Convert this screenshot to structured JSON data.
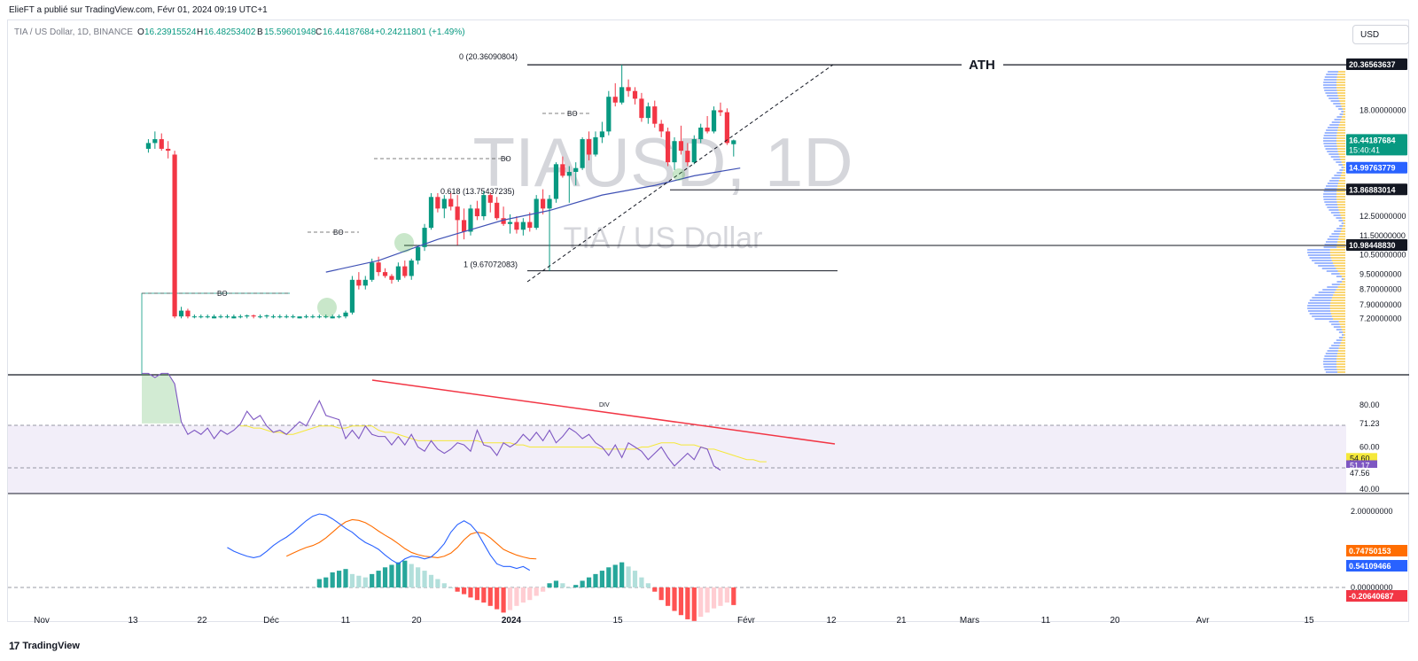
{
  "header": {
    "publisher": "ElieFT a publié sur TradingView.com, Févr 01, 2024 09:19 UTC+1"
  },
  "legend": {
    "symbol": "TIA / US Dollar, 1D, BINANCE",
    "open_label": "O",
    "open": "16.23915524",
    "high_label": "H",
    "high": "16.48253402",
    "low_label": "B",
    "low": "15.59601948",
    "close_label": "C",
    "close": "16.44187684",
    "change": "+0.24211801 (+1.49%)",
    "up_color": "#089981",
    "down_color": "#f23645"
  },
  "currency": "USD",
  "watermark": {
    "ticker": "TIAUSD, 1D",
    "name": "TIA / US Dollar"
  },
  "footer": {
    "brand": "TradingView",
    "mark": "17"
  },
  "chart_data": {
    "type": "candlestick",
    "price_axis": {
      "labels": [
        "18.00000000",
        "12.50000000",
        "11.50000000",
        "10.50000000",
        "9.50000000",
        "8.70000000",
        "7.90000000",
        "7.20000000"
      ],
      "values": [
        18.0,
        12.5,
        11.5,
        10.5,
        9.5,
        8.7,
        7.9,
        7.2
      ],
      "tags": [
        {
          "text": "20.36563637",
          "value": 20.36563637,
          "bg": "#131722",
          "fg": "#ffffff"
        },
        {
          "text": "16.44187684",
          "value": 16.44187684,
          "bg": "#089981",
          "fg": "#ffffff",
          "sub": "15:40:41"
        },
        {
          "text": "14.99763779",
          "value": 14.99763779,
          "bg": "#2962ff",
          "fg": "#ffffff"
        },
        {
          "text": "13.86883014",
          "value": 13.86883014,
          "bg": "#131722",
          "fg": "#ffffff"
        },
        {
          "text": "10.98448830",
          "value": 10.9844883,
          "bg": "#131722",
          "fg": "#ffffff"
        }
      ]
    },
    "time_axis": [
      "Nov",
      "13",
      "22",
      "Déc",
      "11",
      "20",
      "2024",
      "15",
      "Févr",
      "12",
      "21",
      "Mars",
      "11",
      "20",
      "Avr",
      "15"
    ],
    "candles": [
      [
        16,
        16,
        16,
        16
      ],
      [
        16,
        16.5,
        15.8,
        16.3
      ],
      [
        16.3,
        16.9,
        16,
        16.5
      ],
      [
        16.5,
        16.8,
        15.9,
        16.0
      ],
      [
        16.0,
        16.4,
        15.5,
        15.9
      ],
      [
        15.7,
        15.9,
        7.2,
        7.3
      ],
      [
        7.3,
        7.8,
        7.2,
        7.6
      ],
      [
        7.6,
        7.7,
        7.2,
        7.3
      ],
      [
        7.3,
        7.4,
        7.2,
        7.3
      ],
      [
        7.3,
        7.4,
        7.2,
        7.3
      ],
      [
        7.3,
        7.4,
        7.2,
        7.3
      ],
      [
        7.2,
        7.4,
        7.2,
        7.3
      ],
      [
        7.3,
        7.4,
        7.2,
        7.3
      ],
      [
        7.3,
        7.4,
        7.2,
        7.3
      ],
      [
        7.2,
        7.4,
        7.2,
        7.3
      ],
      [
        7.3,
        7.4,
        7.2,
        7.3
      ],
      [
        7.3,
        7.4,
        7.2,
        7.35
      ],
      [
        7.35,
        7.4,
        7.2,
        7.3
      ],
      [
        7.3,
        7.4,
        7.2,
        7.3
      ],
      [
        7.3,
        7.4,
        7.2,
        7.35
      ],
      [
        7.3,
        7.4,
        7.2,
        7.3
      ],
      [
        7.3,
        7.4,
        7.2,
        7.3
      ],
      [
        7.3,
        7.4,
        7.2,
        7.3
      ],
      [
        7.3,
        7.4,
        7.2,
        7.3
      ],
      [
        7.2,
        7.3,
        7.2,
        7.3
      ],
      [
        7.3,
        7.4,
        7.2,
        7.3
      ],
      [
        7.3,
        7.4,
        7.2,
        7.3
      ],
      [
        7.3,
        7.4,
        7.2,
        7.3
      ],
      [
        7.3,
        7.4,
        7.2,
        7.3
      ],
      [
        7.2,
        7.4,
        7.2,
        7.3
      ],
      [
        7.3,
        7.4,
        7.2,
        7.3
      ],
      [
        7.3,
        7.6,
        7.2,
        7.5
      ],
      [
        7.5,
        9.4,
        7.4,
        9.2
      ],
      [
        9.2,
        9.6,
        8.7,
        8.9
      ],
      [
        8.9,
        9.4,
        8.7,
        9.2
      ],
      [
        9.2,
        10.3,
        9.1,
        10.1
      ],
      [
        10.1,
        10.4,
        9.4,
        9.6
      ],
      [
        9.6,
        9.8,
        9.3,
        9.4
      ],
      [
        9.4,
        9.5,
        9.0,
        9.2
      ],
      [
        9.2,
        10.1,
        9.1,
        9.9
      ],
      [
        9.9,
        10.2,
        9.3,
        9.4
      ],
      [
        9.4,
        10.3,
        9.2,
        10.2
      ],
      [
        10.2,
        11.0,
        10.0,
        10.9
      ],
      [
        10.9,
        12.1,
        10.7,
        11.9
      ],
      [
        11.9,
        13.7,
        11.8,
        13.5
      ],
      [
        13.5,
        13.7,
        12.7,
        12.9
      ],
      [
        12.9,
        13.6,
        12.4,
        13.4
      ],
      [
        13.4,
        13.7,
        12.8,
        13.0
      ],
      [
        13.0,
        13.6,
        11.0,
        12.3
      ],
      [
        12.3,
        12.9,
        11.3,
        11.7
      ],
      [
        11.7,
        13.1,
        11.5,
        12.9
      ],
      [
        12.9,
        13.3,
        12.3,
        12.5
      ],
      [
        12.5,
        13.8,
        12.3,
        13.6
      ],
      [
        13.6,
        13.7,
        12.7,
        13.2
      ],
      [
        13.2,
        13.5,
        12.3,
        12.4
      ],
      [
        12.4,
        13.0,
        12.0,
        12.1
      ],
      [
        12.1,
        12.6,
        11.6,
        12.2
      ],
      [
        12.2,
        12.5,
        11.6,
        11.8
      ],
      [
        11.8,
        12.4,
        11.5,
        12.2
      ],
      [
        12.2,
        12.7,
        11.7,
        11.9
      ],
      [
        11.9,
        13.6,
        11.8,
        13.4
      ],
      [
        13.4,
        13.9,
        12.6,
        12.9
      ],
      [
        12.9,
        13.6,
        9.67,
        13.4
      ],
      [
        13.4,
        15.3,
        13.2,
        15.2
      ],
      [
        15.2,
        15.6,
        14.5,
        14.6
      ],
      [
        14.6,
        15.1,
        13.2,
        14.8
      ],
      [
        14.8,
        15.3,
        14.1,
        15.0
      ],
      [
        15.0,
        16.6,
        14.9,
        16.5
      ],
      [
        16.5,
        16.9,
        15.4,
        15.7
      ],
      [
        15.7,
        16.9,
        15.6,
        16.6
      ],
      [
        16.6,
        17.4,
        16.3,
        16.9
      ],
      [
        16.9,
        19.0,
        16.7,
        18.7
      ],
      [
        18.7,
        19.4,
        18.2,
        18.4
      ],
      [
        18.4,
        20.36,
        18.3,
        19.2
      ],
      [
        19.2,
        19.6,
        18.7,
        19.0
      ],
      [
        19.0,
        19.2,
        18.3,
        18.6
      ],
      [
        18.6,
        18.9,
        17.4,
        17.6
      ],
      [
        17.6,
        18.4,
        17.3,
        18.2
      ],
      [
        18.2,
        18.5,
        17.1,
        17.3
      ],
      [
        17.3,
        17.5,
        16.6,
        16.9
      ],
      [
        16.9,
        17.1,
        15.1,
        15.3
      ],
      [
        15.3,
        16.6,
        14.9,
        16.4
      ],
      [
        16.4,
        17.2,
        15.7,
        15.9
      ],
      [
        15.9,
        16.3,
        15.1,
        15.3
      ],
      [
        15.3,
        16.7,
        15.2,
        16.5
      ],
      [
        16.5,
        17.3,
        16.3,
        17.1
      ],
      [
        17.1,
        17.7,
        16.8,
        16.9
      ],
      [
        16.9,
        18.2,
        16.8,
        18.0
      ],
      [
        18.0,
        18.4,
        17.7,
        17.9
      ],
      [
        17.9,
        18.1,
        16.2,
        16.3
      ],
      [
        16.24,
        16.48,
        15.6,
        16.44
      ]
    ],
    "ema": [
      [
        28,
        9.6
      ],
      [
        36,
        10.2
      ],
      [
        45,
        11.3
      ],
      [
        55,
        12.3
      ],
      [
        62,
        12.8
      ],
      [
        70,
        13.6
      ],
      [
        78,
        14.1
      ],
      [
        84,
        14.6
      ],
      [
        91,
        15.0
      ]
    ],
    "fib": {
      "level0": {
        "label": "0 (20.36090804)",
        "value": 20.36090804
      },
      "level618": {
        "label": "0.618 (13.75437235)",
        "value": 13.75437235
      },
      "level1": {
        "label": "1 (9.67072083)",
        "value": 9.67072083
      }
    },
    "ath_label": "ATH",
    "bo_label": "BO",
    "rsi": {
      "axis": [
        "80.00",
        "71.23",
        "60.00",
        "40.00"
      ],
      "tags": [
        {
          "text": "54.60",
          "bg": "#f5e83a",
          "fg": "#131722"
        },
        {
          "text": "51.17",
          "bg": "#7e57c2",
          "fg": "#ffffff"
        },
        {
          "text": "47.56",
          "bg": "#ffffff",
          "fg": "#131722"
        }
      ],
      "div_label": "DIV",
      "values": [
        95,
        95,
        93,
        95,
        95,
        90,
        72,
        66,
        68,
        66,
        69,
        64,
        68,
        66,
        68,
        71,
        77,
        73,
        75,
        70,
        67,
        68,
        66,
        69,
        72,
        70,
        76,
        82,
        75,
        74,
        73,
        64,
        68,
        64,
        70,
        66,
        65,
        65,
        61,
        65,
        61,
        66,
        60,
        58,
        63,
        59,
        57,
        59,
        62,
        61,
        58,
        68,
        61,
        60,
        56,
        62,
        60,
        62,
        66,
        63,
        67,
        63,
        68,
        62,
        65,
        69,
        67,
        64,
        66,
        62,
        60,
        56,
        61,
        55,
        62,
        60,
        58,
        54,
        57,
        60,
        55,
        51,
        54,
        57,
        54,
        60,
        59,
        51,
        49
      ],
      "ma": [
        70,
        70,
        69,
        69,
        68,
        67,
        67,
        66,
        66,
        67,
        68,
        69,
        70,
        70,
        70,
        69,
        69,
        70,
        70,
        70,
        70,
        68,
        67,
        67,
        66,
        65,
        64,
        63,
        63,
        63,
        63,
        63,
        63,
        63,
        63,
        63,
        63,
        62,
        62,
        62,
        62,
        62,
        61,
        61,
        60,
        60,
        60,
        60,
        60,
        60,
        60,
        60,
        60,
        60,
        60,
        59,
        59,
        59,
        59,
        59,
        59,
        60,
        60,
        61,
        62,
        62,
        62,
        61,
        61,
        61,
        60,
        59,
        59,
        58,
        57,
        56,
        55,
        54,
        54,
        53,
        53
      ]
    },
    "macd": {
      "axis": [
        "2.00000000",
        "0.00000000"
      ],
      "tags": [
        {
          "text": "0.74750153",
          "bg": "#ff6d00",
          "fg": "#ffffff"
        },
        {
          "text": "0.54109466",
          "bg": "#2962ff",
          "fg": "#ffffff"
        },
        {
          "text": "-0.20640687",
          "bg": "#f23645",
          "fg": "#ffffff"
        }
      ],
      "macd_line": [
        1.05,
        0.95,
        0.88,
        0.82,
        0.78,
        0.82,
        0.95,
        1.1,
        1.22,
        1.32,
        1.45,
        1.6,
        1.75,
        1.87,
        1.93,
        1.9,
        1.8,
        1.68,
        1.55,
        1.45,
        1.3,
        1.18,
        1.1,
        1.0,
        0.85,
        0.72,
        0.62,
        0.75,
        0.82,
        0.8,
        0.75,
        0.8,
        0.95,
        1.15,
        1.45,
        1.65,
        1.75,
        1.65,
        1.45,
        1.15,
        0.85,
        0.62,
        0.55,
        0.55,
        0.5,
        0.55,
        0.45
      ],
      "signal_line": [
        0.82,
        0.9,
        0.98,
        1.05,
        1.1,
        1.18,
        1.3,
        1.45,
        1.6,
        1.72,
        1.78,
        1.76,
        1.7,
        1.6,
        1.48,
        1.37,
        1.27,
        1.15,
        1.02,
        0.92,
        0.86,
        0.82,
        0.8,
        0.78,
        0.82,
        0.9,
        1.05,
        1.25,
        1.4,
        1.45,
        1.42,
        1.3,
        1.15,
        1.0,
        0.92,
        0.85,
        0.8,
        0.76,
        0.75
      ],
      "hist": [
        0.1,
        0.12,
        0.18,
        0.2,
        0.22,
        0.16,
        0.14,
        0.12,
        0.16,
        0.2,
        0.24,
        0.27,
        0.3,
        0.32,
        0.28,
        0.24,
        0.2,
        0.15,
        0.1,
        0.05,
        0.0,
        -0.05,
        -0.08,
        -0.12,
        -0.15,
        -0.18,
        -0.22,
        -0.26,
        -0.3,
        -0.27,
        -0.22,
        -0.18,
        -0.15,
        -0.1,
        -0.05,
        0.05,
        0.08,
        0.05,
        0.0,
        0.03,
        0.08,
        0.12,
        0.16,
        0.2,
        0.24,
        0.27,
        0.3,
        0.25,
        0.2,
        0.12,
        0.05,
        -0.05,
        -0.15,
        -0.22,
        -0.28,
        -0.33,
        -0.38,
        -0.4,
        -0.35,
        -0.3,
        -0.25,
        -0.22,
        -0.18,
        -0.21
      ]
    }
  }
}
